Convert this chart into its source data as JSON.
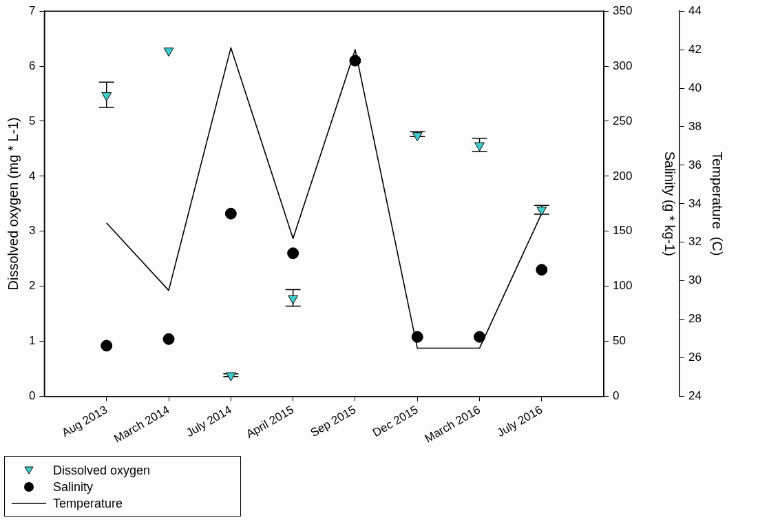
{
  "chart_data": {
    "type": "scatter",
    "categories": [
      "Aug 2013",
      "March 2014",
      "July 2014",
      "April 2015",
      "Sep 2015",
      "Dec 2015",
      "March 2016",
      "July 2016"
    ],
    "ylabel": "Dissolved oxygen (mg * L-1)",
    "y2label": "Salinity (g * kg-1)",
    "y3label": "Temperature  (C)",
    "ylim": [
      0,
      7
    ],
    "yticks": [
      0,
      1,
      2,
      3,
      4,
      5,
      6,
      7
    ],
    "y2lim": [
      0,
      350
    ],
    "y2ticks": [
      0,
      50,
      100,
      150,
      200,
      250,
      300,
      350
    ],
    "y3lim": [
      24,
      44
    ],
    "y3ticks": [
      24,
      26,
      28,
      30,
      32,
      34,
      36,
      38,
      40,
      42,
      44
    ],
    "grid": false,
    "legend": "bottom left",
    "series": [
      {
        "name": "Dissolved oxygen",
        "type": "scatter",
        "marker": "triangle",
        "color": "#40cccc",
        "values": [
          5.47,
          6.28,
          0.38,
          1.78,
          null,
          4.74,
          4.56,
          3.39
        ],
        "errors": [
          [
            5.25,
            5.71
          ],
          null,
          [
            0.36,
            0.41
          ],
          [
            1.64,
            1.94
          ],
          null,
          [
            4.72,
            4.81
          ],
          [
            4.45,
            4.69
          ],
          [
            3.31,
            3.47
          ]
        ]
      },
      {
        "name": "Salinity",
        "type": "scatter",
        "marker": "circle",
        "axis": "y2",
        "color": "#000000",
        "values": [
          46,
          52,
          166,
          130,
          305,
          54,
          54,
          115
        ]
      },
      {
        "name": "Temperature",
        "type": "line",
        "marker": "none",
        "axis": "y3",
        "color": "#000000",
        "values": [
          33.0,
          29.5,
          42.1,
          32.2,
          42.0,
          26.5,
          26.5,
          33.5
        ]
      }
    ]
  }
}
